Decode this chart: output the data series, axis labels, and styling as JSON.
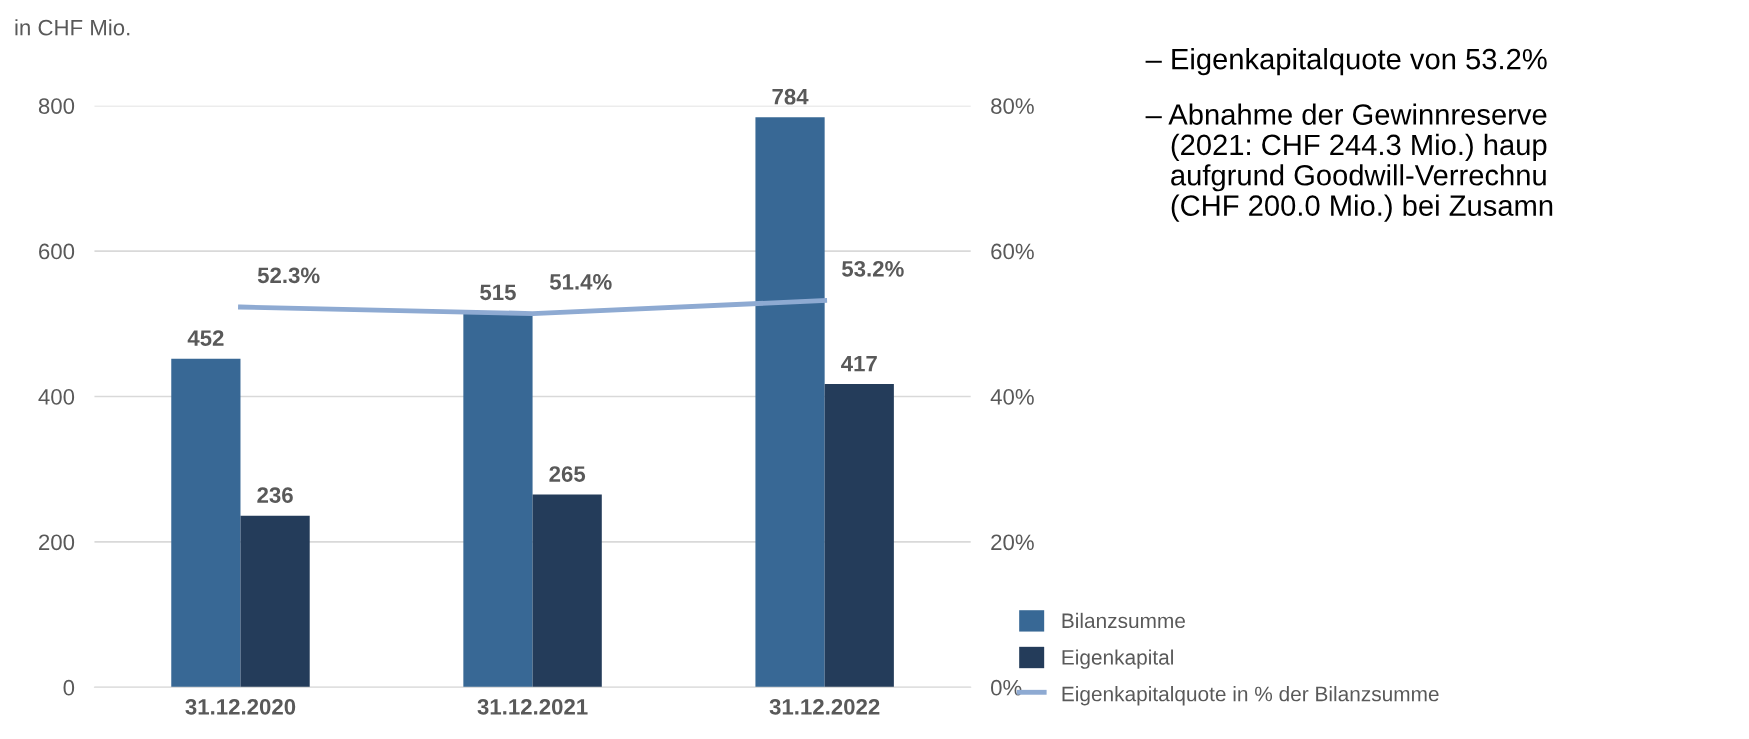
{
  "chart_data": {
    "type": "bar",
    "ylabel": "in CHF Mio.",
    "categories": [
      "31.12.2020",
      "31.12.2021",
      "31.12.2022"
    ],
    "series": [
      {
        "name": "Bilanzsumme",
        "color": "#386895",
        "values": [
          452,
          515,
          784
        ],
        "value_labels": [
          "452",
          "515",
          "784"
        ]
      },
      {
        "name": "Eigenkapital",
        "color": "#243c5a",
        "values": [
          236,
          265,
          417
        ],
        "value_labels": [
          "236",
          "265",
          "417"
        ]
      },
      {
        "name": "Eigenkapitalquote in % der Bilanzsumme",
        "type": "line",
        "axis": "y2",
        "color": "#8eaad2",
        "values": [
          52.3,
          51.4,
          53.2
        ],
        "value_labels": [
          "52.3%",
          "51.4%",
          "53.2%"
        ]
      }
    ],
    "ylim": [
      0,
      800
    ],
    "yticks": [
      0,
      200,
      400,
      600,
      800
    ],
    "y2lim": [
      0,
      80
    ],
    "y2ticks": [
      {
        "value": 0,
        "label": "0%"
      },
      {
        "value": 20,
        "label": "20%"
      },
      {
        "value": 40,
        "label": "40%"
      },
      {
        "value": 60,
        "label": "60%"
      },
      {
        "value": 80,
        "label": "80%"
      }
    ],
    "grid": "y",
    "legend": "bottom right",
    "marker": "none",
    "annotations": [
      "– Eigenkapitalquote von 53.2%",
      "– Abnahme der Gewinnreserve\n   (2021: CHF 244.3 Mio.) haup\n   aufgrund Goodwill-Verrechnu\n   (CHF 200.0 Mio.) bei Zusamn"
    ]
  }
}
